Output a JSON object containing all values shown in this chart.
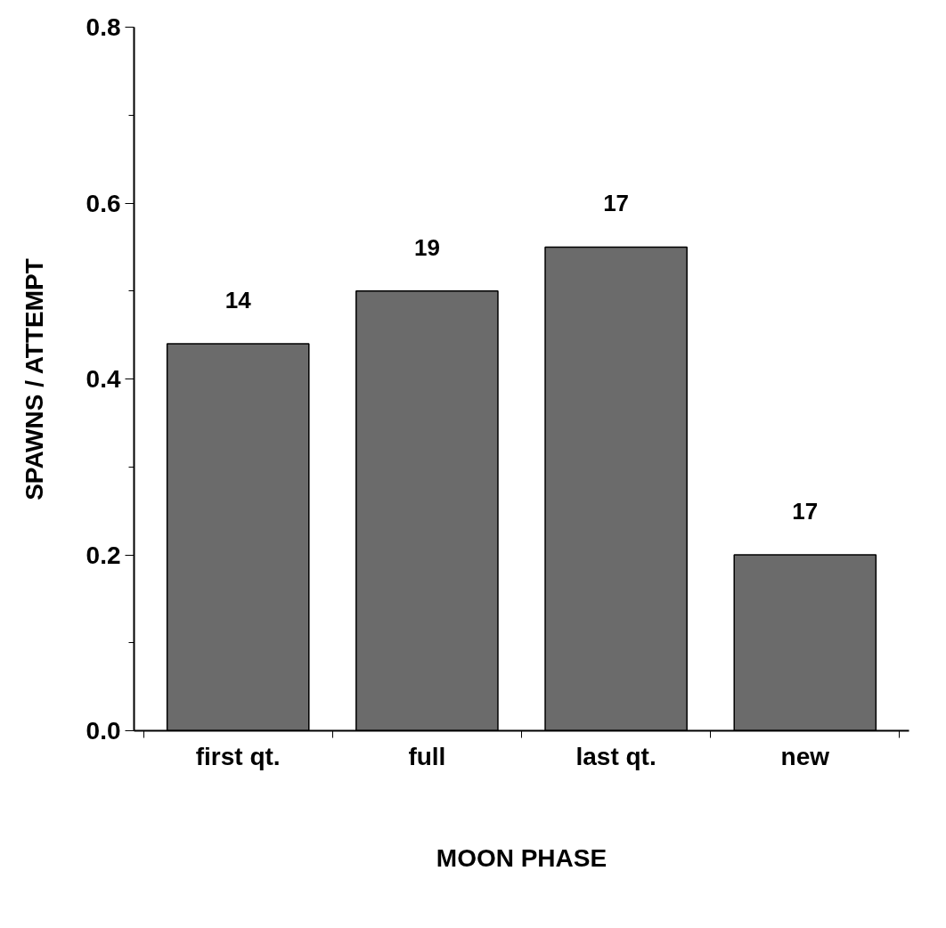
{
  "chart_data": {
    "type": "bar",
    "xlabel": "MOON PHASE",
    "ylabel": "SPAWNS / ATTEMPT",
    "categories": [
      "first qt.",
      "full",
      "last qt.",
      "new"
    ],
    "values": [
      0.44,
      0.5,
      0.55,
      0.2
    ],
    "annotations": [
      {
        "text": "14",
        "x": "first qt.",
        "y": 0.44
      },
      {
        "text": "19",
        "x": "full",
        "y": 0.5
      },
      {
        "text": "17",
        "x": "last qt.",
        "y": 0.55
      },
      {
        "text": "17",
        "x": "new",
        "y": 0.2
      }
    ],
    "color": "#6b6b6b",
    "ylim": [
      0,
      0.8
    ],
    "yticks": [
      "0.0",
      0.2,
      0.4,
      0.6,
      0.8
    ],
    "grid": false
  }
}
